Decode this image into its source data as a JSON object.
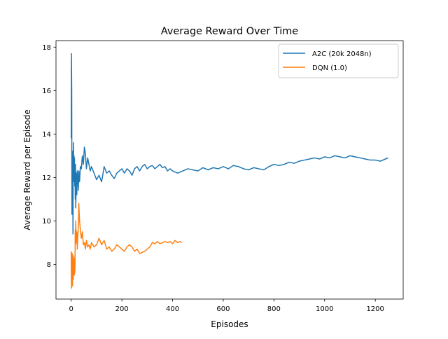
{
  "chart_data": {
    "type": "line",
    "title": "Average Reward Over Time",
    "xlabel": "Episodes",
    "ylabel": "Average Reward per Episode",
    "xlim": [
      -60,
      1310
    ],
    "ylim": [
      6.4,
      18.3
    ],
    "xticks": [
      0,
      200,
      400,
      600,
      800,
      1000,
      1200
    ],
    "yticks": [
      8,
      10,
      12,
      14,
      16,
      18
    ],
    "grid": false,
    "legend_position": "top-right",
    "series": [
      {
        "name": "A2C (20k 2048n)",
        "color": "#1f77b4",
        "x": [
          0,
          1,
          2,
          3,
          4,
          5,
          6,
          7,
          8,
          9,
          10,
          11,
          12,
          13,
          14,
          15,
          16,
          17,
          18,
          20,
          22,
          24,
          26,
          28,
          30,
          33,
          36,
          40,
          44,
          48,
          52,
          56,
          60,
          65,
          70,
          75,
          80,
          90,
          100,
          110,
          120,
          130,
          140,
          150,
          160,
          170,
          180,
          190,
          200,
          210,
          220,
          230,
          240,
          250,
          260,
          270,
          280,
          290,
          300,
          310,
          320,
          330,
          340,
          350,
          360,
          370,
          380,
          390,
          400,
          420,
          440,
          460,
          480,
          500,
          520,
          540,
          560,
          580,
          600,
          620,
          640,
          660,
          680,
          700,
          720,
          740,
          760,
          780,
          800,
          820,
          840,
          860,
          880,
          900,
          920,
          940,
          960,
          980,
          1000,
          1020,
          1040,
          1060,
          1080,
          1100,
          1120,
          1140,
          1160,
          1180,
          1200,
          1220,
          1240,
          1250
        ],
        "values": [
          13.8,
          17.7,
          16.0,
          10.3,
          12.5,
          10.6,
          13.2,
          9.4,
          12.8,
          13.6,
          12.0,
          13.0,
          11.8,
          12.9,
          11.6,
          12.5,
          11.0,
          12.6,
          10.6,
          12.2,
          11.2,
          12.3,
          12.0,
          11.4,
          12.3,
          11.8,
          12.5,
          12.4,
          13.0,
          12.6,
          13.4,
          13.1,
          12.4,
          12.9,
          12.6,
          12.3,
          12.5,
          12.2,
          11.9,
          12.1,
          11.8,
          12.5,
          12.2,
          12.3,
          12.1,
          11.95,
          12.2,
          12.3,
          12.4,
          12.2,
          12.4,
          12.3,
          12.1,
          12.4,
          12.5,
          12.3,
          12.5,
          12.6,
          12.4,
          12.5,
          12.55,
          12.4,
          12.5,
          12.6,
          12.45,
          12.5,
          12.3,
          12.4,
          12.3,
          12.2,
          12.3,
          12.4,
          12.35,
          12.3,
          12.45,
          12.35,
          12.45,
          12.4,
          12.5,
          12.4,
          12.55,
          12.5,
          12.4,
          12.35,
          12.45,
          12.4,
          12.35,
          12.5,
          12.6,
          12.55,
          12.6,
          12.7,
          12.65,
          12.75,
          12.8,
          12.85,
          12.9,
          12.85,
          12.95,
          12.9,
          13.0,
          12.95,
          12.9,
          13.0,
          12.95,
          12.9,
          12.85,
          12.8,
          12.8,
          12.75,
          12.85,
          12.9
        ]
      },
      {
        "name": "DQN (1.0)",
        "color": "#ff7f0e",
        "x": [
          0,
          1,
          2,
          3,
          4,
          5,
          6,
          7,
          8,
          9,
          10,
          11,
          12,
          13,
          14,
          15,
          16,
          17,
          18,
          20,
          22,
          24,
          26,
          28,
          30,
          33,
          36,
          40,
          44,
          48,
          52,
          56,
          60,
          65,
          70,
          75,
          80,
          90,
          100,
          110,
          120,
          130,
          140,
          150,
          160,
          170,
          180,
          190,
          200,
          210,
          220,
          230,
          240,
          250,
          260,
          270,
          280,
          290,
          300,
          310,
          320,
          330,
          340,
          350,
          360,
          370,
          380,
          390,
          400,
          410,
          420,
          430,
          436
        ],
        "values": [
          8.6,
          6.9,
          8.0,
          7.2,
          8.5,
          7.0,
          8.2,
          7.8,
          7.3,
          8.4,
          7.6,
          8.3,
          7.5,
          8.1,
          7.6,
          7.9,
          9.6,
          8.9,
          10.0,
          9.0,
          9.5,
          8.7,
          9.3,
          9.7,
          10.8,
          10.0,
          9.6,
          9.2,
          9.5,
          8.9,
          9.0,
          8.7,
          9.1,
          8.8,
          8.9,
          8.7,
          9.0,
          8.8,
          8.9,
          9.2,
          8.9,
          9.1,
          8.7,
          8.8,
          8.6,
          8.7,
          8.9,
          8.8,
          8.7,
          8.6,
          8.8,
          8.9,
          8.8,
          8.6,
          8.7,
          8.5,
          8.55,
          8.6,
          8.7,
          8.8,
          9.0,
          8.95,
          9.05,
          8.95,
          9.0,
          9.05,
          9.0,
          9.05,
          8.95,
          9.1,
          9.0,
          9.05,
          9.0
        ]
      }
    ]
  }
}
